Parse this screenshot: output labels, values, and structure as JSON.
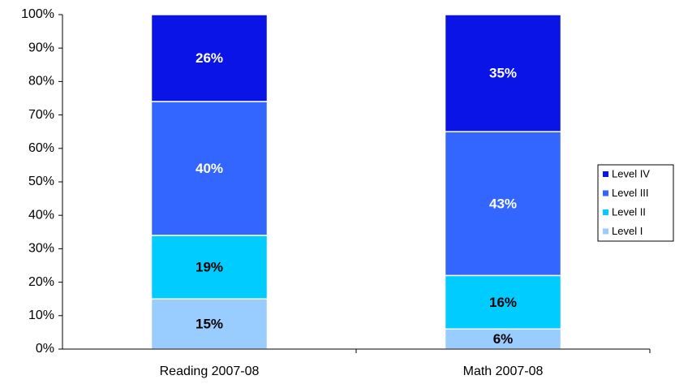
{
  "chart_data": {
    "type": "stacked_bar",
    "categories": [
      "Reading 2007-08",
      "Math 2007-08"
    ],
    "series": [
      {
        "name": "Level I",
        "color": "#99ccff",
        "label_color": "#000000",
        "values": [
          15,
          6
        ],
        "value_labels": [
          "15%",
          "6%"
        ]
      },
      {
        "name": "Level II",
        "color": "#00ccff",
        "label_color": "#000000",
        "values": [
          19,
          16
        ],
        "value_labels": [
          "19%",
          "16%"
        ]
      },
      {
        "name": "Level III",
        "color": "#3366ff",
        "label_color": "#ffffff",
        "values": [
          40,
          43
        ],
        "value_labels": [
          "40%",
          "43%"
        ]
      },
      {
        "name": "Level IV",
        "color": "#0a14e6",
        "label_color": "#ffffff",
        "values": [
          26,
          35
        ],
        "value_labels": [
          "26%",
          "35%"
        ]
      }
    ],
    "ylim": [
      0,
      100
    ],
    "yticks": [
      {
        "value": 0,
        "label": "0%"
      },
      {
        "value": 10,
        "label": "10%"
      },
      {
        "value": 20,
        "label": "20%"
      },
      {
        "value": 30,
        "label": "30%"
      },
      {
        "value": 40,
        "label": "40%"
      },
      {
        "value": 50,
        "label": "50%"
      },
      {
        "value": 60,
        "label": "60%"
      },
      {
        "value": 70,
        "label": "70%"
      },
      {
        "value": 80,
        "label": "80%"
      },
      {
        "value": 90,
        "label": "90%"
      },
      {
        "value": 100,
        "label": "100%"
      }
    ],
    "grid": false,
    "legend": "right"
  }
}
